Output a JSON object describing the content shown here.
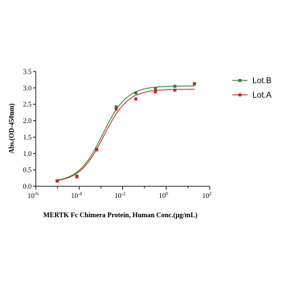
{
  "chart_data": {
    "type": "scatter",
    "xlabel": "MERTK Fc Chimera Protein, Human  Conc.(μg/mL)",
    "ylabel": "Abs.(OD-450nm)",
    "x_scale": "log",
    "xlim": [
      1e-06,
      100
    ],
    "ylim": [
      0.0,
      3.5
    ],
    "x_ticks": [
      {
        "base": "10",
        "exp": "-6",
        "value": 1e-06
      },
      {
        "base": "10",
        "exp": "-4",
        "value": 0.0001
      },
      {
        "base": "10",
        "exp": "-2",
        "value": 0.01
      },
      {
        "base": "10",
        "exp": "0",
        "value": 1
      },
      {
        "base": "10",
        "exp": "2",
        "value": 100
      }
    ],
    "y_ticks": [
      "0.0",
      "0.5",
      "1.0",
      "1.5",
      "2.0",
      "2.5",
      "3.0",
      "3.5"
    ],
    "grid": false,
    "legend_position": "right",
    "series": [
      {
        "name": "Lot.B",
        "color": "#2e7d32",
        "marker": "square",
        "x": [
          9.8e-06,
          7.8e-05,
          0.00063,
          0.005,
          0.04,
          0.32,
          2.5,
          20
        ],
        "y": [
          0.17,
          0.31,
          1.11,
          2.42,
          2.85,
          2.98,
          3.05,
          3.12
        ],
        "fit": {
          "bottom": 0.12,
          "top": 3.06,
          "ec50": 0.0012,
          "hill": 0.78
        }
      },
      {
        "name": "Lot.A",
        "color": "#c62828",
        "marker": "square",
        "x": [
          9.8e-06,
          7.8e-05,
          0.00063,
          0.005,
          0.04,
          0.32,
          2.5,
          20
        ],
        "y": [
          0.16,
          0.29,
          1.13,
          2.36,
          2.66,
          2.88,
          2.93,
          3.13
        ],
        "fit": {
          "bottom": 0.12,
          "top": 2.96,
          "ec50": 0.00135,
          "hill": 0.78
        }
      }
    ]
  }
}
